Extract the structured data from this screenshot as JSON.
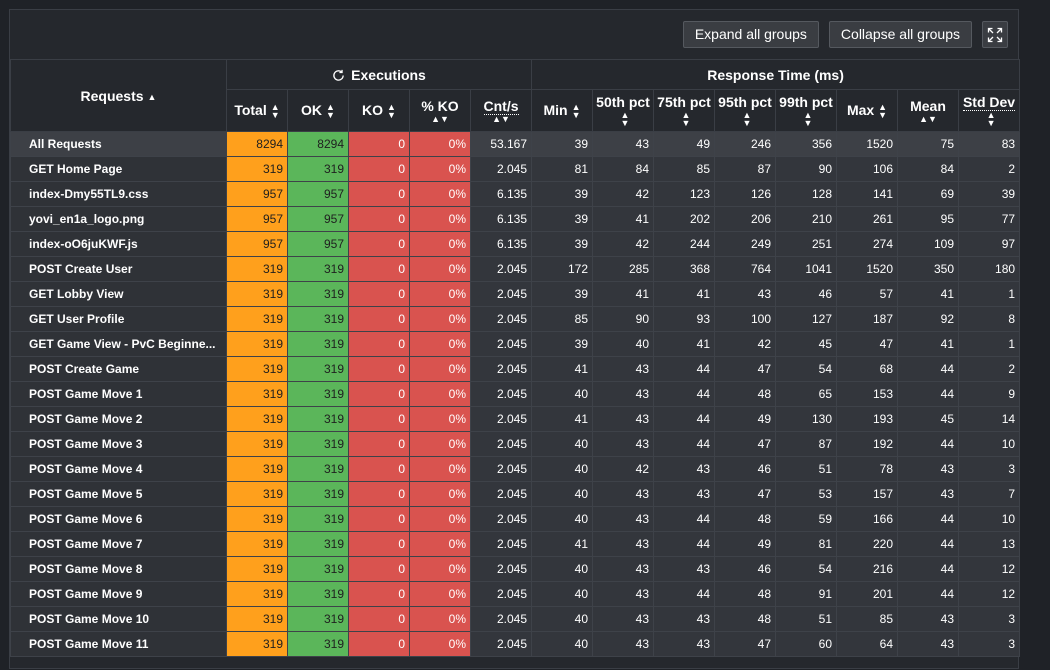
{
  "toolbar": {
    "expand_label": "Expand all groups",
    "collapse_label": "Collapse all groups"
  },
  "header": {
    "requests": "Requests",
    "executions": "Executions",
    "response_time": "Response Time (ms)",
    "cols": [
      "Total",
      "OK",
      "KO",
      "% KO",
      "Cnt/s",
      "Min",
      "50th pct",
      "75th pct",
      "95th pct",
      "99th pct",
      "Max",
      "Mean",
      "Std Dev"
    ]
  },
  "rows": [
    [
      "All Requests",
      "8294",
      "8294",
      "0",
      "0%",
      "53.167",
      "39",
      "43",
      "49",
      "246",
      "356",
      "1520",
      "75",
      "83"
    ],
    [
      "GET Home Page",
      "319",
      "319",
      "0",
      "0%",
      "2.045",
      "81",
      "84",
      "85",
      "87",
      "90",
      "106",
      "84",
      "2"
    ],
    [
      "index-Dmy55TL9.css",
      "957",
      "957",
      "0",
      "0%",
      "6.135",
      "39",
      "42",
      "123",
      "126",
      "128",
      "141",
      "69",
      "39"
    ],
    [
      "yovi_en1a_logo.png",
      "957",
      "957",
      "0",
      "0%",
      "6.135",
      "39",
      "41",
      "202",
      "206",
      "210",
      "261",
      "95",
      "77"
    ],
    [
      "index-oO6juKWF.js",
      "957",
      "957",
      "0",
      "0%",
      "6.135",
      "39",
      "42",
      "244",
      "249",
      "251",
      "274",
      "109",
      "97"
    ],
    [
      "POST Create User",
      "319",
      "319",
      "0",
      "0%",
      "2.045",
      "172",
      "285",
      "368",
      "764",
      "1041",
      "1520",
      "350",
      "180"
    ],
    [
      "GET Lobby View",
      "319",
      "319",
      "0",
      "0%",
      "2.045",
      "39",
      "41",
      "41",
      "43",
      "46",
      "57",
      "41",
      "1"
    ],
    [
      "GET User Profile",
      "319",
      "319",
      "0",
      "0%",
      "2.045",
      "85",
      "90",
      "93",
      "100",
      "127",
      "187",
      "92",
      "8"
    ],
    [
      "GET Game View - PvC Beginne...",
      "319",
      "319",
      "0",
      "0%",
      "2.045",
      "39",
      "40",
      "41",
      "42",
      "45",
      "47",
      "41",
      "1"
    ],
    [
      "POST Create Game",
      "319",
      "319",
      "0",
      "0%",
      "2.045",
      "41",
      "43",
      "44",
      "47",
      "54",
      "68",
      "44",
      "2"
    ],
    [
      "POST Game Move 1",
      "319",
      "319",
      "0",
      "0%",
      "2.045",
      "40",
      "43",
      "44",
      "48",
      "65",
      "153",
      "44",
      "9"
    ],
    [
      "POST Game Move 2",
      "319",
      "319",
      "0",
      "0%",
      "2.045",
      "41",
      "43",
      "44",
      "49",
      "130",
      "193",
      "45",
      "14"
    ],
    [
      "POST Game Move 3",
      "319",
      "319",
      "0",
      "0%",
      "2.045",
      "40",
      "43",
      "44",
      "47",
      "87",
      "192",
      "44",
      "10"
    ],
    [
      "POST Game Move 4",
      "319",
      "319",
      "0",
      "0%",
      "2.045",
      "40",
      "42",
      "43",
      "46",
      "51",
      "78",
      "43",
      "3"
    ],
    [
      "POST Game Move 5",
      "319",
      "319",
      "0",
      "0%",
      "2.045",
      "40",
      "43",
      "43",
      "47",
      "53",
      "157",
      "43",
      "7"
    ],
    [
      "POST Game Move 6",
      "319",
      "319",
      "0",
      "0%",
      "2.045",
      "40",
      "43",
      "44",
      "48",
      "59",
      "166",
      "44",
      "10"
    ],
    [
      "POST Game Move 7",
      "319",
      "319",
      "0",
      "0%",
      "2.045",
      "41",
      "43",
      "44",
      "49",
      "81",
      "220",
      "44",
      "13"
    ],
    [
      "POST Game Move 8",
      "319",
      "319",
      "0",
      "0%",
      "2.045",
      "40",
      "43",
      "43",
      "46",
      "54",
      "216",
      "44",
      "12"
    ],
    [
      "POST Game Move 9",
      "319",
      "319",
      "0",
      "0%",
      "2.045",
      "40",
      "43",
      "44",
      "48",
      "91",
      "201",
      "44",
      "12"
    ],
    [
      "POST Game Move 10",
      "319",
      "319",
      "0",
      "0%",
      "2.045",
      "40",
      "43",
      "43",
      "48",
      "51",
      "85",
      "43",
      "3"
    ],
    [
      "POST Game Move 11",
      "319",
      "319",
      "0",
      "0%",
      "2.045",
      "40",
      "43",
      "43",
      "47",
      "60",
      "64",
      "43",
      "3"
    ]
  ],
  "colors": {
    "total": "#ffa01c",
    "ok": "#5bb65a",
    "ko": "#d9534f",
    "background": "#25282d"
  },
  "icons": {
    "fullscreen": "expand-arrows-icon",
    "refresh": "refresh-icon",
    "sort": "sort-arrows-icon"
  }
}
